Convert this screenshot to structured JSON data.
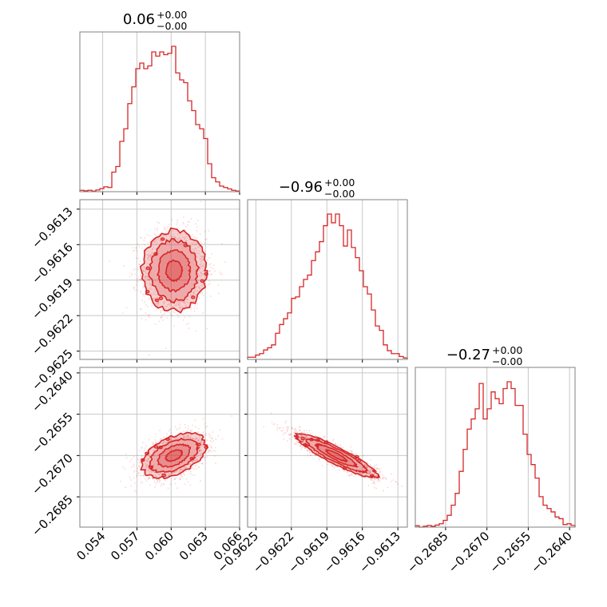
{
  "chart_data": {
    "type": "corner",
    "color": "#d62728",
    "grid": true,
    "titles": [
      {
        "main": "0.06",
        "upper": "+0.00",
        "lower": "−0.00"
      },
      {
        "main": "−0.96",
        "upper": "+0.00",
        "lower": "−0.00"
      },
      {
        "main": "−0.27",
        "upper": "+0.00",
        "lower": "−0.00"
      }
    ],
    "parameters": [
      {
        "range": [
          0.052,
          0.066
        ],
        "ticks": [
          0.054,
          0.057,
          0.06,
          0.063,
          0.066
        ],
        "tick_labels": [
          "0.054",
          "0.057",
          "0.060",
          "0.063",
          "0.066"
        ]
      },
      {
        "range": [
          -0.96257,
          -0.96122
        ],
        "ticks": [
          -0.9625,
          -0.9622,
          -0.9619,
          -0.9616,
          -0.9613
        ],
        "tick_labels": [
          "−0.9625",
          "−0.9622",
          "−0.9619",
          "−0.9616",
          "−0.9613"
        ]
      },
      {
        "range": [
          -0.2696,
          -0.2638
        ],
        "ticks": [
          -0.2685,
          -0.267,
          -0.2655,
          -0.264
        ],
        "tick_labels": [
          "−0.2685",
          "−0.2670",
          "−0.2655",
          "−0.2640"
        ]
      }
    ],
    "histograms": [
      {
        "param": 0,
        "bin_edges_range": [
          0.052,
          0.066
        ],
        "counts": [
          1,
          0.6,
          1,
          0.4,
          1.2,
          2.2,
          3.5,
          3,
          14,
          18,
          36,
          45,
          63,
          75,
          88,
          92,
          88,
          90,
          100,
          97,
          100,
          98,
          99,
          104,
          85,
          80,
          78,
          65,
          58,
          48,
          45,
          38,
          20,
          10,
          7,
          4,
          3,
          2,
          1,
          0.5
        ]
      },
      {
        "param": 1,
        "bin_edges_range": [
          -0.96257,
          -0.96122
        ],
        "counts": [
          1.5,
          1.5,
          3,
          4,
          6.5,
          8,
          10,
          18,
          24,
          28,
          32,
          42,
          43,
          50,
          55,
          58,
          68,
          74,
          81,
          92,
          100,
          94,
          100,
          92,
          78,
          89,
          77,
          70,
          61,
          50,
          45,
          34,
          23,
          20,
          10,
          6,
          4,
          4,
          2,
          1
        ]
      },
      {
        "param": 2,
        "bin_edges_range": [
          -0.2696,
          -0.2638
        ],
        "counts": [
          0.8,
          0,
          0.5,
          1,
          0.5,
          1.2,
          2,
          4,
          7,
          13,
          20,
          33,
          46,
          58,
          64,
          70,
          85,
          64,
          70,
          80,
          76,
          73,
          82,
          86,
          82,
          72,
          72,
          55,
          43,
          37,
          29,
          18,
          13,
          11,
          9,
          6,
          5,
          1.5,
          2,
          1
        ]
      }
    ],
    "scatter_2d": [
      {
        "x_param": 0,
        "y_param": 1,
        "mean": [
          0.06025,
          -0.96182
        ],
        "std": [
          0.0014,
          0.00017
        ],
        "rho": 0.0
      },
      {
        "x_param": 0,
        "y_param": 2,
        "mean": [
          0.06025,
          -0.267
        ],
        "std": [
          0.0014,
          0.0004
        ],
        "rho": 0.45
      },
      {
        "x_param": 1,
        "y_param": 2,
        "mean": [
          -0.96182,
          -0.267
        ],
        "std": [
          0.00017,
          0.0004
        ],
        "rho": -0.9
      }
    ]
  }
}
